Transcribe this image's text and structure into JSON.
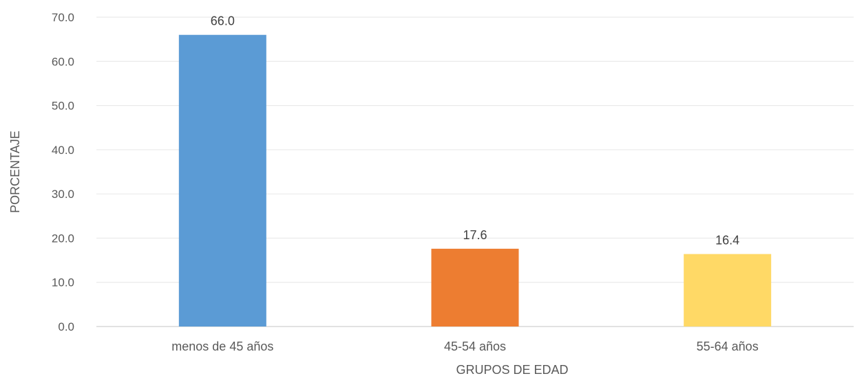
{
  "chart_data": {
    "type": "bar",
    "categories": [
      "menos de 45 años",
      "45-54 años",
      "55-64 años"
    ],
    "values": [
      66.0,
      17.6,
      16.4
    ],
    "data_labels": [
      "66.0",
      "17.6",
      "16.4"
    ],
    "colors": [
      "#5b9bd5",
      "#ed7d31",
      "#ffd966"
    ],
    "xlabel": "GRUPOS DE EDAD",
    "ylabel": "PORCENTAJE",
    "ylim": [
      0,
      70
    ],
    "yticks": [
      "0.0",
      "10.0",
      "20.0",
      "30.0",
      "40.0",
      "50.0",
      "60.0",
      "70.0"
    ],
    "grid": true,
    "legend": "none"
  }
}
